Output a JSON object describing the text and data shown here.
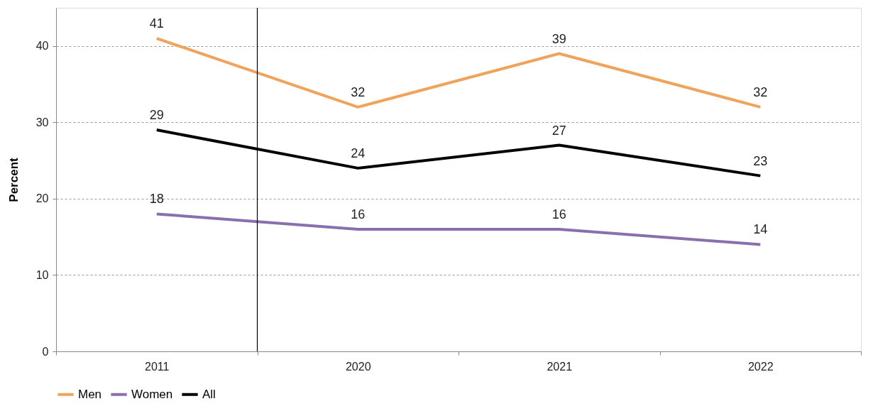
{
  "chart_data": {
    "type": "line",
    "ylabel": "Percent",
    "categories": [
      "2011",
      "2020",
      "2021",
      "2022"
    ],
    "series": [
      {
        "name": "Men",
        "color": "#f0a35a",
        "values": [
          41,
          32,
          39,
          32
        ]
      },
      {
        "name": "Women",
        "color": "#8a6fae",
        "values": [
          18,
          16,
          16,
          14
        ]
      },
      {
        "name": "All",
        "color": "#000000",
        "values": [
          29,
          24,
          27,
          23
        ]
      }
    ],
    "ylim": [
      0,
      45
    ],
    "yticks": [
      0,
      10,
      20,
      30,
      40
    ],
    "grid": "y",
    "legend": "bottom",
    "data_labels": true,
    "marker": "none",
    "line_style": "solid",
    "ref_lines": [
      {
        "axis": "x",
        "value": "2020",
        "color": "#000000"
      }
    ]
  }
}
